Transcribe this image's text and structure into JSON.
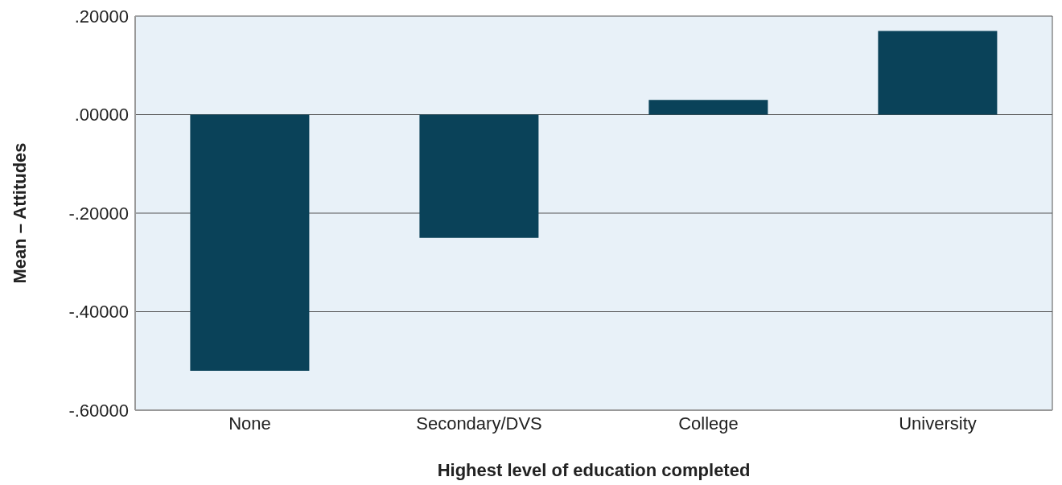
{
  "chart_data": {
    "type": "bar",
    "xlabel": "Highest level of education completed",
    "ylabel": "Mean – Attitudes",
    "categories": [
      "None",
      "Secondary/DVS",
      "College",
      "University"
    ],
    "values": [
      -0.52,
      -0.25,
      0.03,
      0.17
    ],
    "color": "#0a4259",
    "ylim": [
      -0.6,
      0.2
    ],
    "yticks": [
      {
        "value": -0.6,
        "label": "-.60000"
      },
      {
        "value": -0.4,
        "label": "-.40000"
      },
      {
        "value": -0.2,
        "label": "-.20000"
      },
      {
        "value": 0,
        "label": ".00000"
      },
      {
        "value": 0.2,
        "label": ".20000"
      }
    ],
    "grid": "y"
  }
}
